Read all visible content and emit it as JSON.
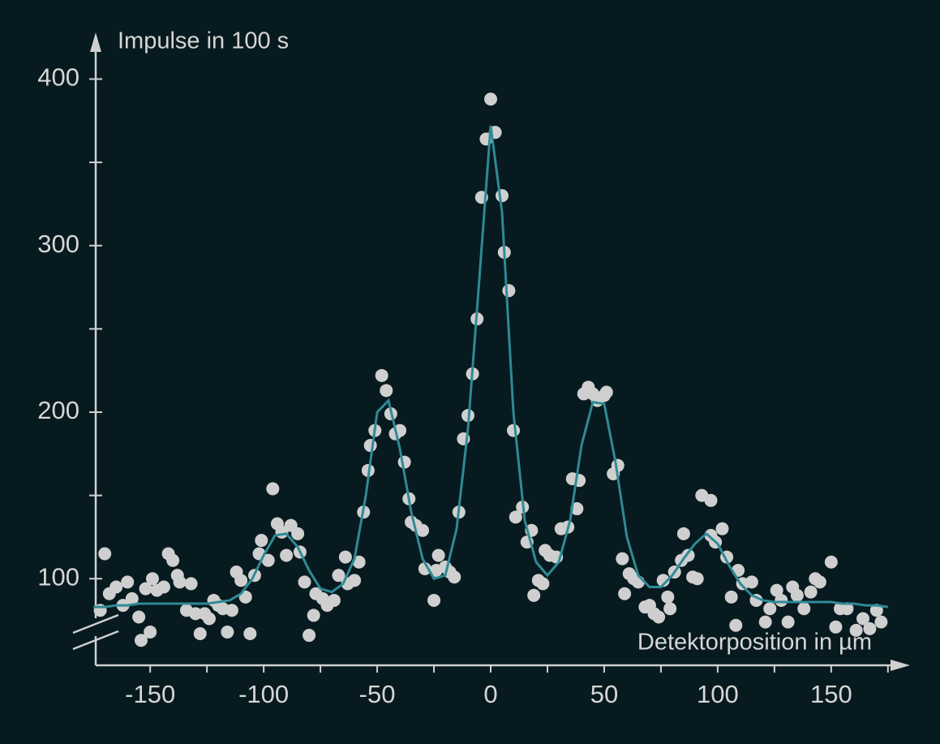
{
  "chart_data": {
    "type": "scatter",
    "y_label": "Impulse in 100 s",
    "x_label": "Detektorposition in µm",
    "xlim": [
      -174,
      184
    ],
    "ylim": [
      48,
      428
    ],
    "xticks": [
      -150,
      -100,
      -50,
      0,
      50,
      100,
      150
    ],
    "yticks": [
      100,
      200,
      300,
      400
    ],
    "xminorticks": [
      -125,
      -75,
      -25,
      25,
      75,
      125,
      175
    ],
    "yminorticks": [
      150,
      250,
      350
    ],
    "y_axis_break": true,
    "series": [
      {
        "type": "scatter",
        "color": "#cfcfcf",
        "x": [
          -170,
          -172,
          -168,
          -165,
          -162,
          -160,
          -158,
          -155,
          -154,
          -152,
          -150,
          -149,
          -147,
          -144,
          -142,
          -140,
          -138,
          -137,
          -134,
          -132,
          -130,
          -128,
          -126,
          -124,
          -122,
          -120,
          -118,
          -116,
          -114,
          -112,
          -110,
          -108,
          -106,
          -104,
          -102,
          -101,
          -98,
          -96,
          -94,
          -92,
          -90,
          -88,
          -85,
          -84,
          -82,
          -80,
          -78,
          -77,
          -74,
          -72,
          -69,
          -67,
          -64,
          -63,
          -60,
          -58,
          -56,
          -54,
          -53,
          -51,
          -48,
          -46,
          -44,
          -42,
          -40,
          -38,
          -36,
          -35,
          -33,
          -30,
          -29,
          -25,
          -24,
          -23,
          -20,
          -18,
          -16,
          -14,
          -12,
          -10,
          -8,
          -6,
          -4,
          -2,
          0,
          2,
          5,
          6,
          8,
          10,
          11,
          14,
          16,
          18,
          19,
          21,
          23,
          24,
          26,
          29,
          31,
          34,
          36,
          38,
          39,
          41,
          43,
          45,
          47,
          50,
          51,
          54,
          56,
          58,
          59,
          61,
          63,
          65,
          68,
          70,
          72,
          74,
          76,
          78,
          79,
          81,
          84,
          85,
          87,
          89,
          91,
          93,
          97,
          97,
          99,
          102,
          104,
          106,
          108,
          109,
          111,
          115,
          117,
          121,
          123,
          126,
          128,
          131,
          133,
          135,
          138,
          141,
          143,
          145,
          150,
          152,
          154,
          157,
          161,
          164,
          167,
          170,
          172
        ],
        "values": [
          115,
          81,
          91,
          95,
          84,
          98,
          88,
          77,
          63,
          94,
          68,
          100,
          93,
          95,
          115,
          111,
          102,
          98,
          81,
          97,
          79,
          67,
          79,
          76,
          87,
          84,
          82,
          68,
          81,
          104,
          99,
          89,
          67,
          102,
          115,
          123,
          111,
          154,
          133,
          128,
          114,
          132,
          127,
          116,
          98,
          66,
          78,
          91,
          88,
          84,
          87,
          102,
          113,
          97,
          99,
          110,
          140,
          165,
          180,
          189,
          222,
          213,
          199,
          187,
          189,
          170,
          148,
          134,
          132,
          129,
          106,
          87,
          105,
          114,
          107,
          104,
          101,
          140,
          184,
          198,
          223,
          256,
          329,
          364,
          388,
          368,
          330,
          296,
          273,
          189,
          137,
          143,
          122,
          129,
          90,
          99,
          97,
          117,
          114,
          113,
          130,
          131,
          160,
          142,
          159,
          211,
          215,
          211,
          207,
          210,
          212,
          163,
          168,
          112,
          91,
          103,
          100,
          98,
          83,
          84,
          79,
          77,
          99,
          89,
          82,
          104,
          111,
          127,
          114,
          101,
          100,
          150,
          147,
          126,
          122,
          130,
          113,
          89,
          72,
          105,
          97,
          98,
          87,
          74,
          82,
          93,
          87,
          74,
          95,
          90,
          82,
          92,
          100,
          98,
          110,
          71,
          82,
          82,
          69,
          76,
          70,
          81,
          74
        ]
      },
      {
        "type": "line",
        "color": "#2e8a95",
        "x": [
          -175,
          -170,
          -165,
          -160,
          -155,
          -150,
          -145,
          -140,
          -135,
          -130,
          -125,
          -120,
          -115,
          -110,
          -105,
          -100,
          -95,
          -90,
          -85,
          -80,
          -75,
          -70,
          -65,
          -60,
          -55,
          -50,
          -45,
          -40,
          -35,
          -30,
          -25,
          -20,
          -15,
          -10,
          -5,
          0,
          5,
          10,
          15,
          20,
          25,
          30,
          35,
          40,
          45,
          50,
          55,
          60,
          65,
          70,
          75,
          80,
          85,
          90,
          95,
          100,
          105,
          110,
          115,
          120,
          125,
          130,
          135,
          140,
          145,
          150,
          155,
          160,
          165,
          170,
          175
        ],
        "values": [
          83,
          83,
          84,
          84,
          85,
          85,
          85,
          85,
          85,
          85,
          85,
          86,
          87,
          91,
          100,
          114,
          126,
          127,
          119,
          105,
          94,
          92,
          97,
          112,
          150,
          200,
          207,
          178,
          140,
          112,
          100,
          102,
          130,
          190,
          280,
          372,
          320,
          200,
          135,
          110,
          102,
          110,
          135,
          180,
          206,
          205,
          170,
          125,
          102,
          95,
          95,
          102,
          112,
          121,
          127,
          121,
          108,
          97,
          90,
          87,
          86,
          86,
          86,
          86,
          86,
          86,
          85,
          85,
          84,
          84,
          83
        ]
      }
    ]
  }
}
